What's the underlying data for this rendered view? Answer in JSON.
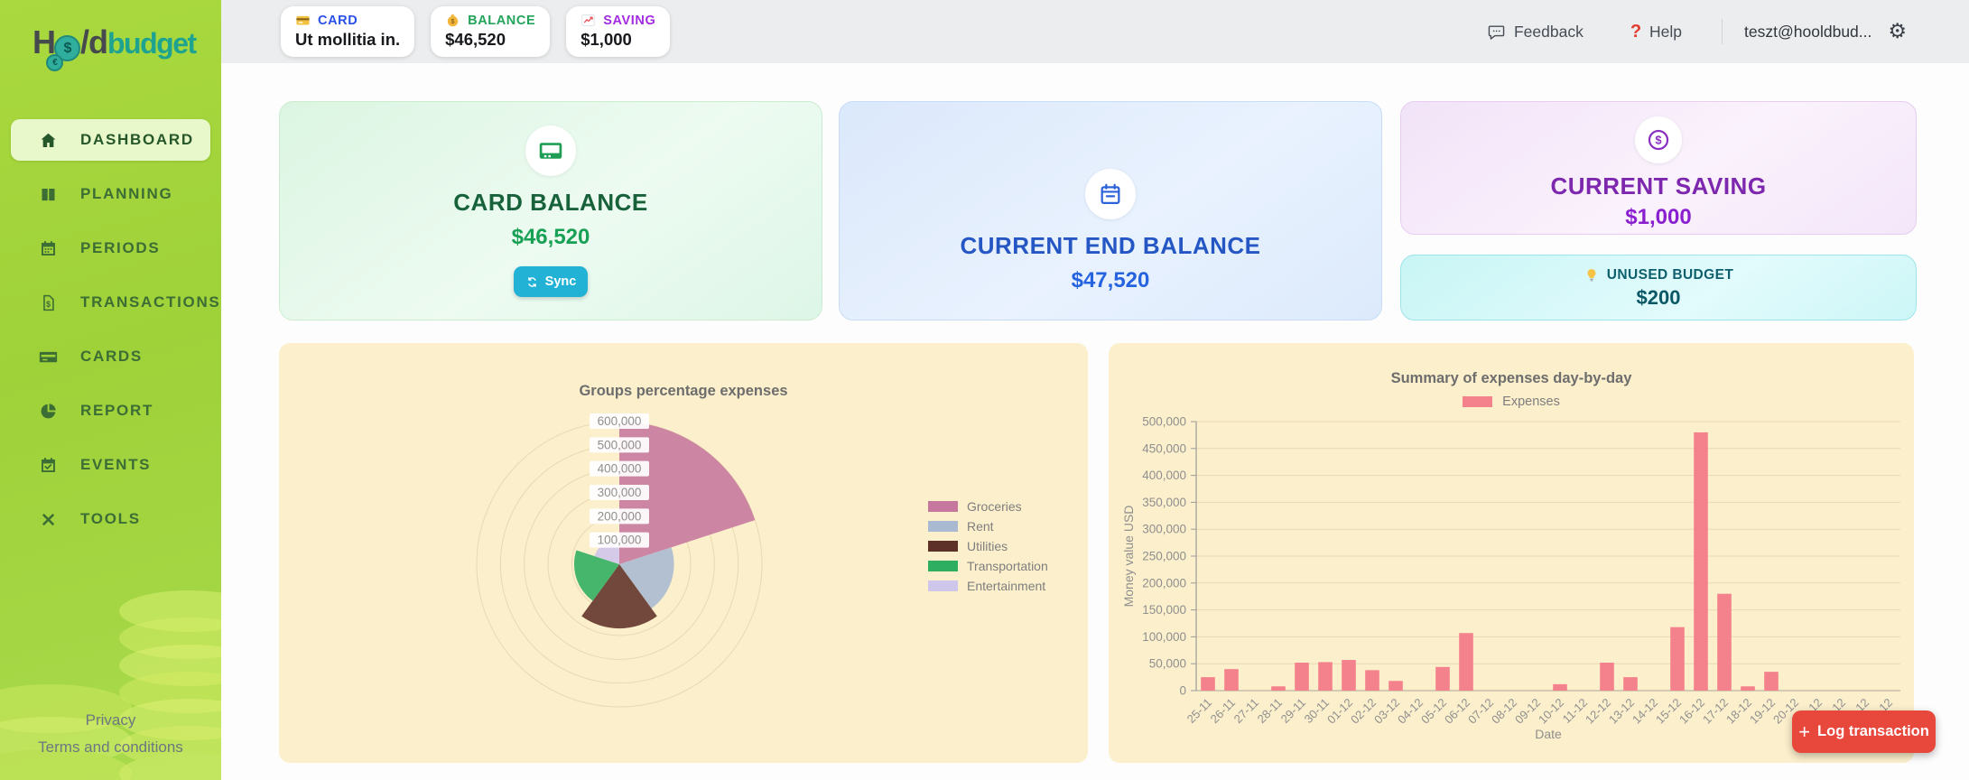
{
  "theme": {
    "sidebar_green": "#a4d440",
    "active_item_bg": "#e9f8cb",
    "topbar_bg": "#ebedee",
    "panel_bg": "#fcefcc",
    "fab_red": "#e8473c",
    "sync_cyan": "#22b2d6"
  },
  "sidebar": {
    "logo": {
      "prefix": "H",
      "coin_symbol": "$",
      "coin_symbol_2": "€",
      "middle": "/d",
      "suffix": "budget"
    },
    "items": [
      {
        "label": "DASHBOARD",
        "icon": "home",
        "active": true
      },
      {
        "label": "PLANNING",
        "icon": "columns",
        "active": false
      },
      {
        "label": "PERIODS",
        "icon": "calendar",
        "active": false
      },
      {
        "label": "TRANSACTIONS",
        "icon": "invoice-dollar",
        "active": false
      },
      {
        "label": "CARDS",
        "icon": "credit-card",
        "active": false
      },
      {
        "label": "REPORT",
        "icon": "pie-chart",
        "active": false
      },
      {
        "label": "EVENTS",
        "icon": "calendar-check",
        "active": false
      },
      {
        "label": "TOOLS",
        "icon": "tools",
        "active": false
      }
    ],
    "footer_links": [
      {
        "label": "Privacy"
      },
      {
        "label": "Terms and conditions"
      }
    ]
  },
  "topbar": {
    "chips": [
      {
        "icon": "credit-card",
        "label": "CARD",
        "value": "Ut mollitia in.",
        "label_color": "#2b50e8"
      },
      {
        "icon": "money-bag",
        "label": "BALANCE",
        "value": "$46,520",
        "label_color": "#23a45b"
      },
      {
        "icon": "chart-up",
        "label": "SAVING",
        "value": "$1,000",
        "label_color": "#a32be2"
      }
    ],
    "feedback": {
      "label": "Feedback"
    },
    "help": {
      "label": "Help",
      "icon_symbol": "?",
      "icon_color": "#e23c30"
    },
    "user_email": "teszt@hooldbud...",
    "gear_glyph": "⚙"
  },
  "summary_cards": {
    "card_balance": {
      "title": "CARD BALANCE",
      "value": "$46,520",
      "button_label": "Sync",
      "accent": "#1f9d55"
    },
    "current_end_balance": {
      "title": "CURRENT END BALANCE",
      "value": "$47,520",
      "accent": "#2c62d9"
    },
    "current_saving": {
      "title": "CURRENT SAVING",
      "value": "$1,000",
      "accent": "#8a2fc0"
    },
    "unused_budget": {
      "title": "UNUSED BUDGET",
      "value": "$200",
      "accent": "#0d616e"
    }
  },
  "fab": {
    "plus": "+",
    "label": "Log transaction",
    "color": "#e8473c"
  },
  "chart_data": [
    {
      "type": "polarArea",
      "title": "Groups percentage expenses",
      "categories": [
        "Groceries",
        "Rent",
        "Utilities",
        "Transportation",
        "Entertainment"
      ],
      "values": [
        600000,
        230000,
        270000,
        190000,
        110000
      ],
      "colors": [
        "#c5779d",
        "#a9b9d2",
        "#5d3127",
        "#2eae60",
        "#cfc6ec"
      ],
      "rmax": 600000,
      "tick_step": 100000,
      "tick_labels": [
        "100,000",
        "200,000",
        "300,000",
        "400,000",
        "500,000",
        "600,000"
      ],
      "grid": true,
      "legend_position": "right"
    },
    {
      "type": "bar",
      "title": "Summary of expenses day-by-day",
      "categories": [
        "25-11",
        "26-11",
        "27-11",
        "28-11",
        "29-11",
        "30-11",
        "01-12",
        "02-12",
        "03-12",
        "04-12",
        "05-12",
        "06-12",
        "07-12",
        "08-12",
        "09-12",
        "10-12",
        "11-12",
        "12-12",
        "13-12",
        "14-12",
        "15-12",
        "16-12",
        "17-12",
        "18-12",
        "19-12",
        "20-12",
        "21-12",
        "22-12",
        "23-12",
        "24-12"
      ],
      "series": [
        {
          "name": "Expenses",
          "color": "#f4828c",
          "values": [
            25000,
            40000,
            0,
            8000,
            52000,
            53000,
            57000,
            38000,
            18000,
            0,
            44000,
            107000,
            0,
            0,
            0,
            12000,
            0,
            52000,
            25000,
            0,
            118000,
            480000,
            180000,
            8000,
            35000,
            0,
            0,
            0,
            0,
            0
          ]
        }
      ],
      "xlabel": "Date",
      "ylabel": "Money value USD",
      "ylim": [
        0,
        500000
      ],
      "tick_step": 50000,
      "grid": true,
      "legend_position": "top"
    }
  ]
}
